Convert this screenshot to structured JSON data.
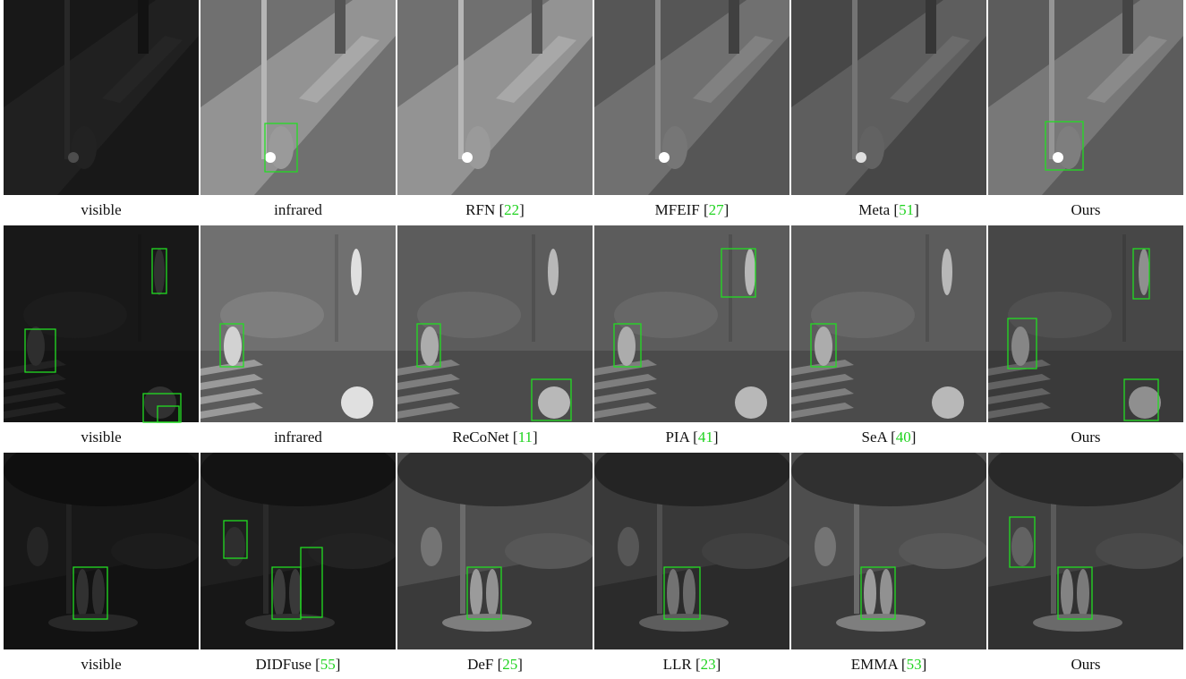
{
  "rows": [
    {
      "captions": [
        "visible",
        "infrared",
        "RFN [22]",
        "MFEIF [27]",
        "Meta [51]",
        "Ours"
      ]
    },
    {
      "captions": [
        "visible",
        "infrared",
        "ReCoNet [11]",
        "PIA [41]",
        "SeA [40]",
        "Ours"
      ]
    },
    {
      "captions": [
        "visible",
        "DIDFuse [55]",
        "DeF [25]",
        "LLR [23]",
        "EMMA [53]",
        "Ours"
      ]
    }
  ]
}
